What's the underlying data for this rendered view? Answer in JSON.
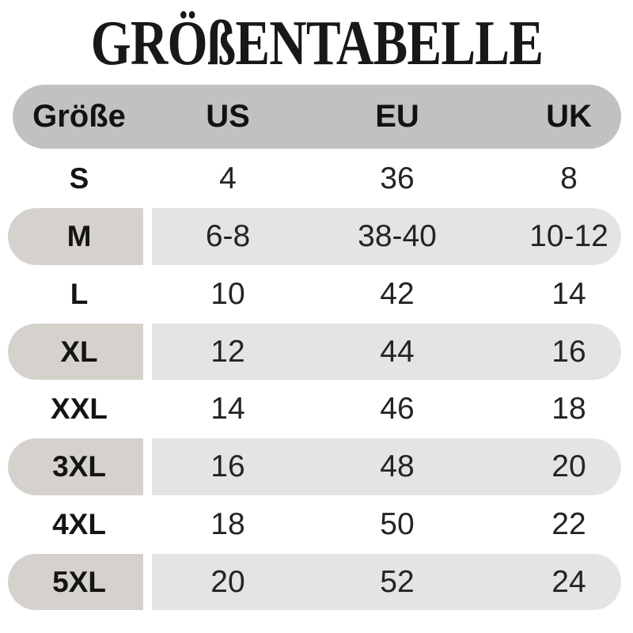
{
  "title": "GRÖßENTABELLE",
  "chart_data": {
    "type": "table",
    "title": "GRÖßENTABELLE",
    "columns": [
      "Größe",
      "US",
      "EU",
      "UK"
    ],
    "rows": [
      [
        "S",
        "4",
        "36",
        "8"
      ],
      [
        "M",
        "6-8",
        "38-40",
        "10-12"
      ],
      [
        "L",
        "10",
        "42",
        "14"
      ],
      [
        "XL",
        "12",
        "44",
        "16"
      ],
      [
        "XXL",
        "14",
        "46",
        "18"
      ],
      [
        "3XL",
        "16",
        "48",
        "20"
      ],
      [
        "4XL",
        "18",
        "50",
        "22"
      ],
      [
        "5XL",
        "20",
        "52",
        "24"
      ]
    ],
    "highlighted_rows": [
      "M",
      "XL",
      "3XL",
      "5XL"
    ]
  },
  "colors": {
    "title_color": "#181818",
    "text_color": "#1a1a1a",
    "header_bg": "#c3c1bf",
    "size_pill_bg": "#d5d1cc",
    "row_band_bg": "#e6e4e2",
    "page_bg": "#ffffff"
  }
}
